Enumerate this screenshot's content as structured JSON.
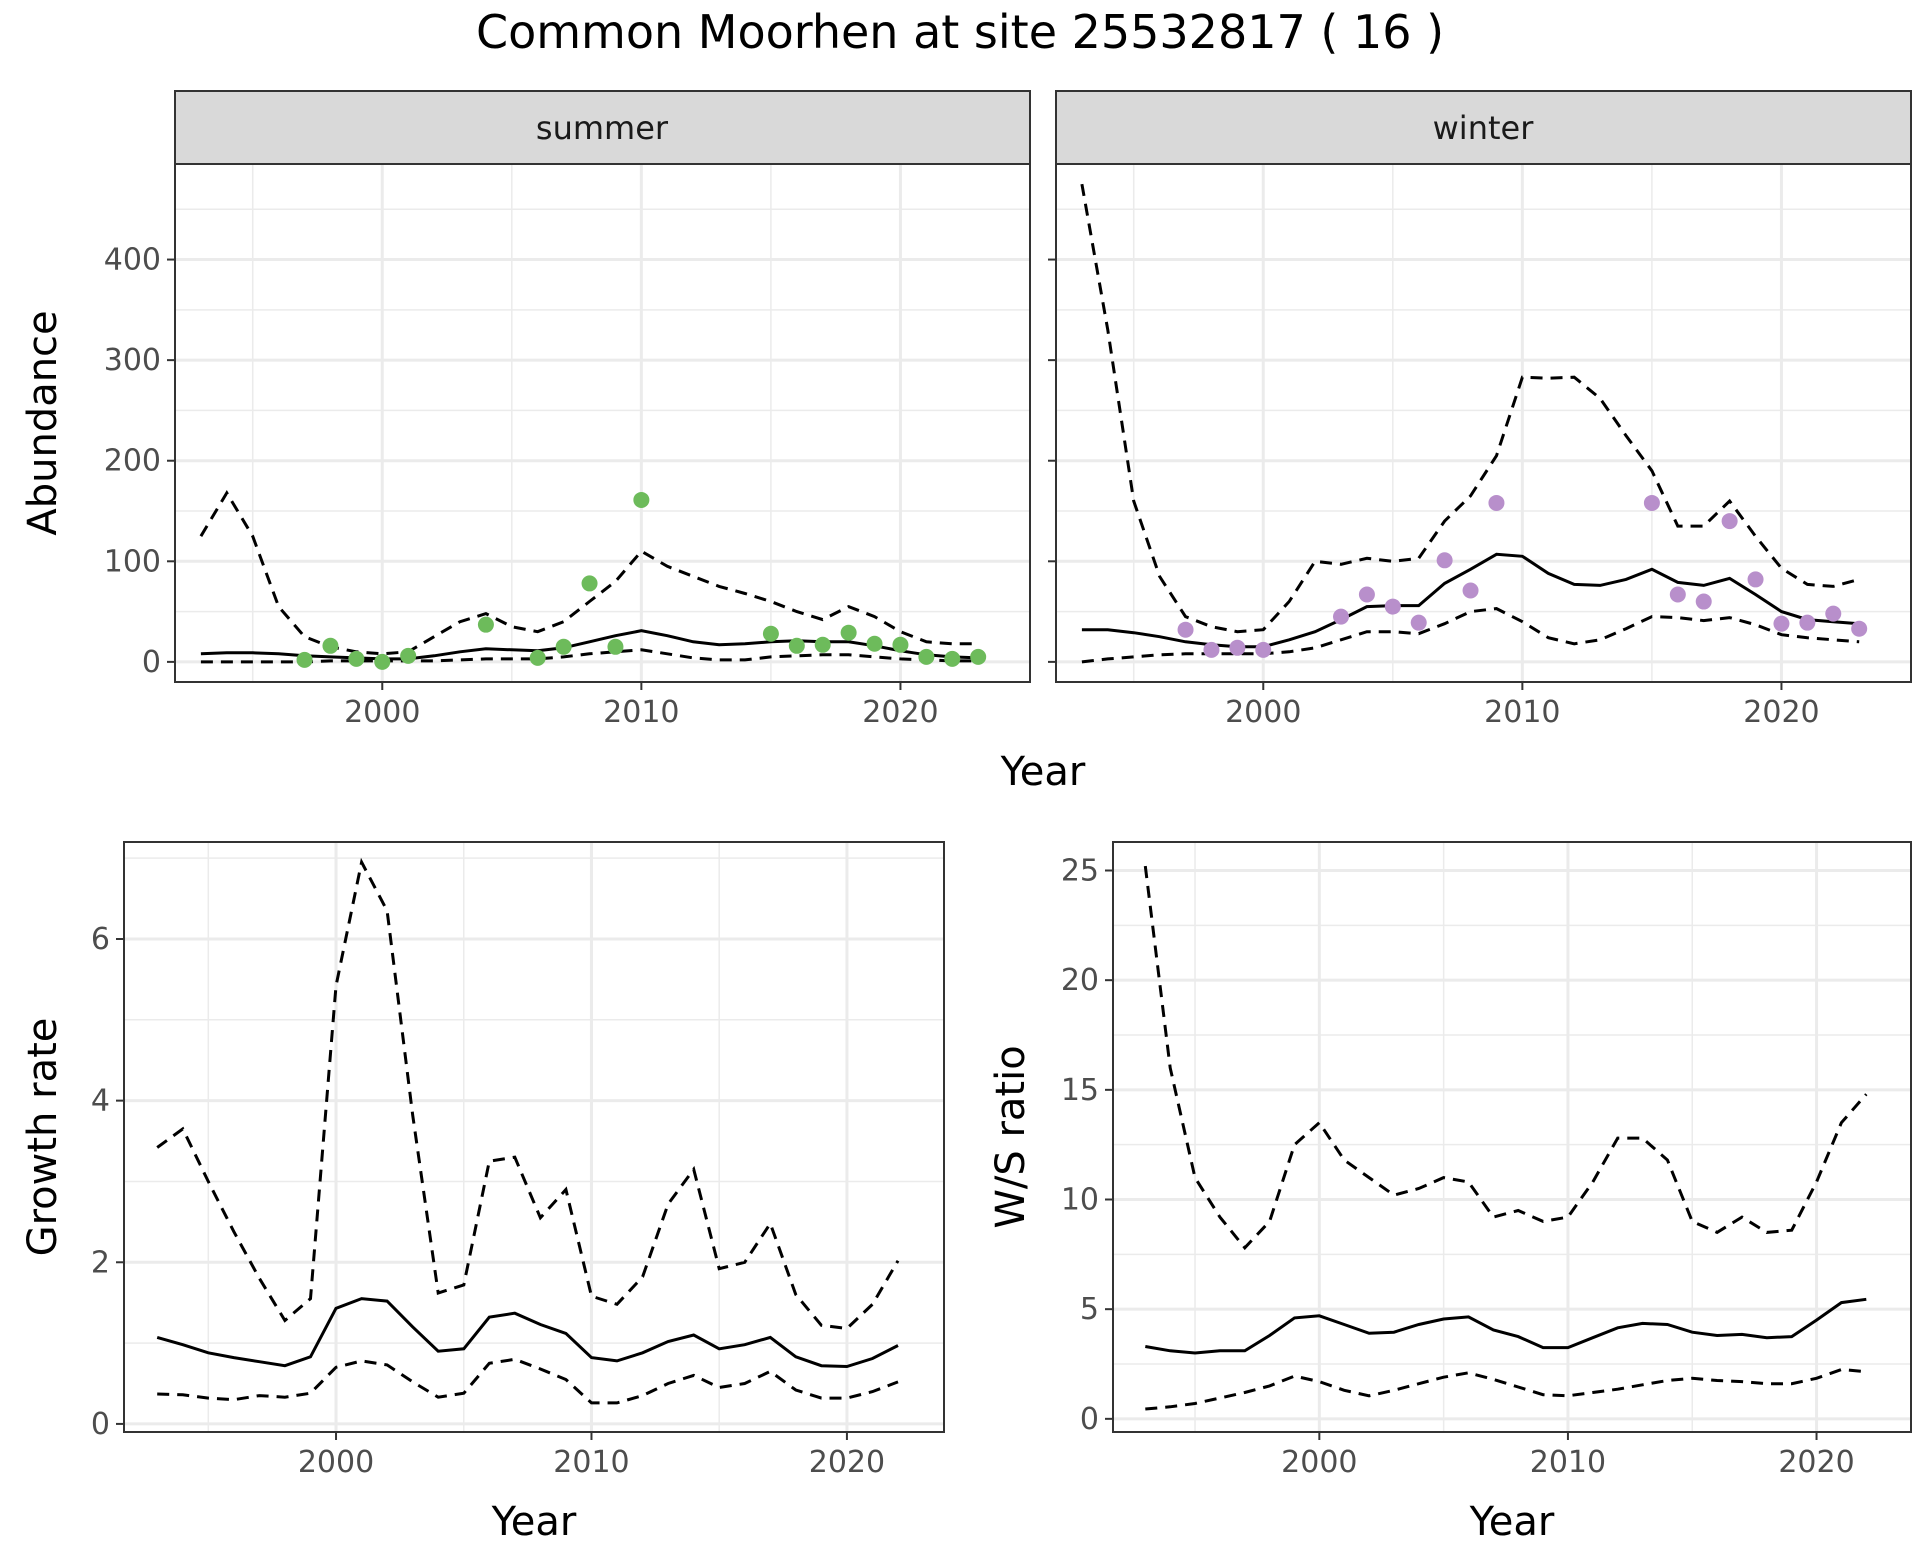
{
  "title": "Common Moorhen at site 25532817 ( 16 )",
  "colors": {
    "summer_points": "#6dbb5b",
    "winter_points": "#b88fcb",
    "lines": "#000000"
  },
  "chart_data": [
    {
      "id": "abundance_summer",
      "type": "line",
      "strip_label": "summer",
      "ylabel": "Abundance",
      "xlabel": "Year",
      "xlim": [
        1992,
        2025
      ],
      "ylim": [
        -20,
        495
      ],
      "xticks": [
        2000,
        2010,
        2020
      ],
      "yticks": [
        0,
        100,
        200,
        300,
        400
      ],
      "x": [
        1993,
        1994,
        1995,
        1996,
        1997,
        1998,
        1999,
        2000,
        2001,
        2002,
        2003,
        2004,
        2005,
        2006,
        2007,
        2008,
        2009,
        2010,
        2011,
        2012,
        2013,
        2014,
        2015,
        2016,
        2017,
        2018,
        2019,
        2020,
        2021,
        2022,
        2023
      ],
      "series": [
        {
          "role": "mean",
          "values": [
            8,
            9,
            9,
            8,
            6,
            5,
            4,
            3,
            3,
            6,
            10,
            13,
            12,
            11,
            14,
            20,
            26,
            31,
            26,
            20,
            17,
            18,
            20,
            21,
            20,
            20,
            16,
            11,
            7,
            5,
            4
          ]
        },
        {
          "role": "upper",
          "values": [
            125,
            168,
            125,
            55,
            25,
            15,
            10,
            8,
            10,
            25,
            40,
            48,
            35,
            30,
            40,
            60,
            80,
            110,
            95,
            85,
            75,
            68,
            60,
            50,
            42,
            55,
            45,
            30,
            20,
            18,
            18
          ]
        },
        {
          "role": "lower",
          "values": [
            0,
            0,
            0,
            0,
            0,
            1,
            1,
            1,
            1,
            1,
            2,
            3,
            3,
            3,
            5,
            8,
            10,
            12,
            8,
            4,
            2,
            2,
            5,
            6,
            7,
            7,
            5,
            3,
            2,
            1,
            1
          ]
        }
      ],
      "points": {
        "x": [
          1997,
          1998,
          1999,
          2000,
          2001,
          2004,
          2006,
          2007,
          2008,
          2009,
          2010,
          2015,
          2016,
          2017,
          2018,
          2019,
          2020,
          2021,
          2022,
          2023
        ],
        "y": [
          2,
          16,
          3,
          0,
          6,
          37,
          4,
          15,
          78,
          15,
          161,
          28,
          16,
          17,
          29,
          18,
          17,
          5,
          3,
          5
        ]
      }
    },
    {
      "id": "abundance_winter",
      "type": "line",
      "strip_label": "winter",
      "ylabel": "",
      "xlabel": "Year",
      "xlim": [
        1992,
        2025
      ],
      "ylim": [
        -20,
        495
      ],
      "xticks": [
        2000,
        2010,
        2020
      ],
      "yticks": [
        0,
        100,
        200,
        300,
        400
      ],
      "x": [
        1993,
        1994,
        1995,
        1996,
        1997,
        1998,
        1999,
        2000,
        2001,
        2002,
        2003,
        2004,
        2005,
        2006,
        2007,
        2008,
        2009,
        2010,
        2011,
        2012,
        2013,
        2014,
        2015,
        2016,
        2017,
        2018,
        2019,
        2020,
        2021,
        2022,
        2023
      ],
      "series": [
        {
          "role": "mean",
          "values": [
            32,
            32,
            29,
            25,
            20,
            17,
            15,
            15,
            22,
            30,
            42,
            55,
            56,
            56,
            78,
            92,
            107,
            105,
            88,
            77,
            76,
            82,
            92,
            79,
            76,
            83,
            67,
            50,
            42,
            40,
            38
          ]
        },
        {
          "role": "upper",
          "values": [
            475,
            330,
            160,
            85,
            45,
            35,
            30,
            32,
            60,
            100,
            97,
            103,
            100,
            103,
            140,
            165,
            205,
            283,
            282,
            283,
            262,
            225,
            190,
            135,
            135,
            160,
            125,
            93,
            77,
            75,
            82
          ]
        },
        {
          "role": "lower",
          "values": [
            0,
            3,
            5,
            7,
            8,
            8,
            8,
            8,
            10,
            14,
            22,
            30,
            30,
            28,
            38,
            50,
            53,
            40,
            24,
            18,
            22,
            33,
            45,
            44,
            41,
            44,
            37,
            27,
            24,
            22,
            20
          ]
        }
      ],
      "points": {
        "x": [
          1997,
          1998,
          1999,
          2000,
          2003,
          2004,
          2005,
          2006,
          2007,
          2008,
          2009,
          2015,
          2016,
          2017,
          2018,
          2019,
          2020,
          2021,
          2022,
          2023
        ],
        "y": [
          32,
          12,
          14,
          12,
          45,
          67,
          55,
          39,
          101,
          71,
          158,
          158,
          67,
          60,
          140,
          82,
          38,
          39,
          48,
          33
        ]
      }
    },
    {
      "id": "growth_rate",
      "type": "line",
      "ylabel": "Growth rate",
      "xlabel": "Year",
      "xlim": [
        1991.7,
        2023.8
      ],
      "ylim": [
        -0.1,
        7.2
      ],
      "xticks": [
        2000,
        2010,
        2020
      ],
      "yticks": [
        0,
        2,
        4,
        6
      ],
      "x": [
        1993,
        1994,
        1995,
        1996,
        1997,
        1998,
        1999,
        2000,
        2001,
        2002,
        2003,
        2004,
        2005,
        2006,
        2007,
        2008,
        2009,
        2010,
        2011,
        2012,
        2013,
        2014,
        2015,
        2016,
        2017,
        2018,
        2019,
        2020,
        2021,
        2022
      ],
      "series": [
        {
          "role": "mean",
          "values": [
            1.07,
            0.98,
            0.88,
            0.82,
            0.77,
            0.72,
            0.83,
            1.43,
            1.55,
            1.52,
            1.2,
            0.9,
            0.93,
            1.32,
            1.37,
            1.23,
            1.12,
            0.82,
            0.78,
            0.88,
            1.02,
            1.1,
            0.93,
            0.98,
            1.07,
            0.83,
            0.72,
            0.71,
            0.81,
            0.97
          ]
        },
        {
          "role": "upper",
          "values": [
            3.42,
            3.65,
            3.0,
            2.38,
            1.8,
            1.28,
            1.55,
            5.42,
            6.95,
            6.35,
            3.82,
            1.62,
            1.72,
            3.25,
            3.3,
            2.55,
            2.9,
            1.58,
            1.48,
            1.82,
            2.72,
            3.15,
            1.92,
            2.0,
            2.48,
            1.6,
            1.22,
            1.18,
            1.48,
            2.02
          ]
        },
        {
          "role": "lower",
          "values": [
            0.37,
            0.36,
            0.32,
            0.3,
            0.35,
            0.33,
            0.38,
            0.7,
            0.78,
            0.73,
            0.52,
            0.33,
            0.38,
            0.75,
            0.8,
            0.68,
            0.55,
            0.26,
            0.26,
            0.35,
            0.5,
            0.6,
            0.45,
            0.5,
            0.65,
            0.42,
            0.32,
            0.32,
            0.4,
            0.52
          ]
        }
      ]
    },
    {
      "id": "ws_ratio",
      "type": "line",
      "ylabel": "W/S ratio",
      "xlabel": "Year",
      "xlim": [
        1991.7,
        2023.8
      ],
      "ylim": [
        -0.6,
        26.3
      ],
      "xticks": [
        2000,
        2010,
        2020
      ],
      "yticks": [
        0,
        5,
        10,
        15,
        20,
        25
      ],
      "x": [
        1993,
        1994,
        1995,
        1996,
        1997,
        1998,
        1999,
        2000,
        2001,
        2002,
        2003,
        2004,
        2005,
        2006,
        2007,
        2008,
        2009,
        2010,
        2011,
        2012,
        2013,
        2014,
        2015,
        2016,
        2017,
        2018,
        2019,
        2020,
        2021,
        2022
      ],
      "series": [
        {
          "role": "mean",
          "values": [
            3.3,
            3.1,
            3.0,
            3.1,
            3.1,
            3.8,
            4.6,
            4.7,
            4.3,
            3.9,
            3.95,
            4.3,
            4.55,
            4.65,
            4.05,
            3.75,
            3.25,
            3.25,
            3.7,
            4.15,
            4.35,
            4.3,
            3.95,
            3.8,
            3.85,
            3.7,
            3.75,
            4.5,
            5.3,
            5.45
          ]
        },
        {
          "role": "upper",
          "values": [
            25.2,
            16.0,
            11.0,
            9.2,
            7.8,
            9.0,
            12.5,
            13.5,
            11.8,
            11.0,
            10.2,
            10.5,
            11.0,
            10.8,
            9.2,
            9.5,
            9.0,
            9.2,
            10.8,
            12.8,
            12.8,
            11.8,
            9.0,
            8.5,
            9.2,
            8.5,
            8.6,
            10.8,
            13.5,
            14.8
          ]
        },
        {
          "role": "lower",
          "values": [
            0.45,
            0.55,
            0.7,
            0.95,
            1.2,
            1.5,
            1.95,
            1.7,
            1.3,
            1.05,
            1.3,
            1.6,
            1.9,
            2.1,
            1.8,
            1.45,
            1.1,
            1.05,
            1.2,
            1.35,
            1.55,
            1.75,
            1.85,
            1.75,
            1.7,
            1.6,
            1.6,
            1.85,
            2.25,
            2.15
          ]
        }
      ]
    }
  ]
}
